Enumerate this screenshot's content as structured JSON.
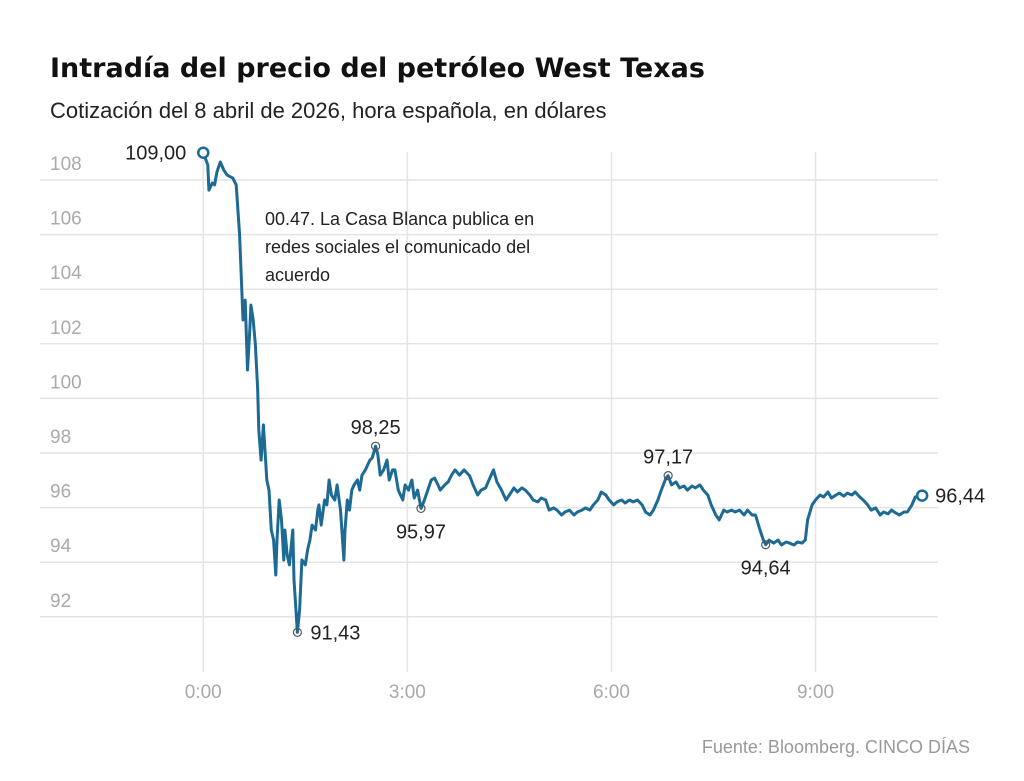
{
  "chart_data": {
    "type": "line",
    "title": "Intradía del precio del petróleo West Texas",
    "subtitle": "Cotización del 8 abril de 2026, hora española, en dólares",
    "xlabel": "",
    "ylabel": "",
    "x_unit": "minutes since 0:00",
    "xlim": [
      -144,
      648
    ],
    "ylim": [
      91,
      109
    ],
    "grid": true,
    "y_ticks": [
      108,
      106,
      104,
      102,
      100,
      98,
      96,
      94,
      92
    ],
    "y_tick_labels": [
      "108",
      "106",
      "104",
      "102",
      "100",
      "98",
      "96",
      "94",
      "92"
    ],
    "x_ticks": [
      0,
      180,
      360,
      540
    ],
    "x_tick_labels": [
      "0:00",
      "3:00",
      "6:00",
      "9:00"
    ],
    "series": [
      {
        "name": "West Texas",
        "color": "#1d6a94",
        "x": [
          0,
          4,
          5,
          8,
          10,
          12,
          15,
          18,
          21,
          26,
          29,
          32,
          34,
          35,
          37,
          39,
          41,
          42,
          44,
          46,
          48,
          49,
          51,
          53,
          55,
          56,
          58,
          60,
          62,
          64,
          65,
          67,
          69,
          71,
          72,
          74,
          76,
          79,
          80,
          83,
          85,
          87,
          90,
          92,
          94,
          96,
          99,
          101,
          102,
          104,
          107,
          109,
          111,
          113,
          116,
          118,
          121,
          124,
          125,
          127,
          129,
          131,
          133,
          136,
          138,
          140,
          143,
          147,
          149,
          152,
          154,
          156,
          159,
          162,
          164,
          167,
          169,
          172,
          176,
          178,
          181,
          184,
          186,
          189,
          192,
          195,
          198,
          201,
          204,
          207,
          209,
          213,
          216,
          219,
          222,
          226,
          230,
          235,
          238,
          242,
          245,
          249,
          252,
          256,
          259,
          263,
          267,
          270,
          274,
          277,
          281,
          284,
          288,
          291,
          295,
          298,
          302,
          305,
          309,
          312,
          316,
          319,
          323,
          327,
          330,
          334,
          337,
          341,
          344,
          348,
          351,
          355,
          358,
          362,
          365,
          369,
          372,
          376,
          379,
          383,
          387,
          390,
          394,
          397,
          401,
          404,
          408,
          410,
          413,
          417,
          420,
          424,
          427,
          431,
          434,
          438,
          441,
          445,
          448,
          452,
          455,
          459,
          462,
          466,
          469,
          473,
          477,
          480,
          484,
          487,
          491,
          494,
          496,
          499,
          503,
          507,
          510,
          514,
          517,
          521,
          524,
          528,
          531,
          533,
          537,
          540,
          544,
          547,
          551,
          554,
          558,
          561,
          565,
          568,
          572,
          575,
          579,
          582,
          586,
          589,
          593,
          597,
          600,
          604,
          607,
          611,
          614,
          618,
          621,
          625,
          628,
          634
        ],
        "values": [
          109.0,
          108.55,
          107.63,
          107.89,
          107.82,
          108.29,
          108.66,
          108.37,
          108.18,
          108.07,
          107.82,
          105.99,
          103.97,
          102.87,
          103.6,
          101.04,
          102.51,
          103.42,
          102.87,
          101.96,
          100.31,
          98.84,
          97.74,
          99.03,
          97.74,
          97.01,
          96.64,
          95.18,
          94.81,
          93.53,
          94.81,
          96.28,
          95.55,
          94.08,
          95.18,
          94.26,
          93.9,
          95.18,
          93.35,
          91.43,
          92.25,
          94.08,
          93.9,
          94.45,
          94.81,
          95.36,
          95.18,
          95.91,
          96.1,
          95.36,
          96.28,
          96.1,
          97.01,
          96.46,
          96.28,
          96.83,
          95.91,
          94.08,
          95.18,
          96.28,
          95.91,
          96.64,
          96.83,
          97.01,
          96.64,
          97.19,
          97.38,
          97.74,
          97.82,
          98.25,
          97.93,
          97.19,
          97.38,
          97.74,
          97.01,
          97.38,
          97.38,
          96.64,
          96.28,
          96.83,
          96.64,
          97.01,
          96.35,
          96.64,
          95.97,
          96.28,
          96.64,
          97.01,
          97.08,
          96.83,
          96.64,
          96.83,
          96.94,
          97.19,
          97.38,
          97.19,
          97.38,
          97.16,
          96.83,
          96.46,
          96.64,
          96.72,
          97.01,
          97.38,
          96.94,
          96.64,
          96.28,
          96.46,
          96.72,
          96.57,
          96.72,
          96.64,
          96.46,
          96.28,
          96.21,
          96.35,
          96.28,
          95.91,
          95.99,
          95.91,
          95.73,
          95.84,
          95.91,
          95.73,
          95.84,
          95.91,
          95.99,
          95.91,
          96.1,
          96.28,
          96.57,
          96.46,
          96.28,
          96.1,
          96.21,
          96.28,
          96.17,
          96.28,
          96.21,
          96.28,
          96.1,
          95.84,
          95.73,
          95.91,
          96.28,
          96.64,
          97.08,
          97.17,
          96.83,
          96.94,
          96.72,
          96.79,
          96.64,
          96.79,
          96.72,
          96.83,
          96.64,
          96.46,
          96.1,
          95.73,
          95.55,
          95.91,
          95.84,
          95.91,
          95.84,
          95.91,
          95.73,
          95.91,
          95.73,
          95.73,
          95.18,
          94.81,
          94.64,
          94.81,
          94.7,
          94.81,
          94.63,
          94.74,
          94.7,
          94.63,
          94.74,
          94.7,
          94.81,
          95.55,
          96.1,
          96.28,
          96.46,
          96.39,
          96.57,
          96.35,
          96.46,
          96.53,
          96.42,
          96.53,
          96.46,
          96.57,
          96.39,
          96.28,
          96.1,
          95.91,
          95.99,
          95.73,
          95.84,
          95.77,
          95.91,
          95.8,
          95.73,
          95.84,
          95.84,
          96.1,
          96.39,
          96.44
        ]
      }
    ],
    "data_labels": [
      {
        "x": 0,
        "y": 109.0,
        "text": "109,00",
        "anchor": "end",
        "marker": "endpoint"
      },
      {
        "x": 83,
        "y": 91.43,
        "text": "91,43",
        "anchor": "start-right",
        "marker": "point"
      },
      {
        "x": 152,
        "y": 98.25,
        "text": "98,25",
        "anchor": "above",
        "marker": "point"
      },
      {
        "x": 192,
        "y": 95.97,
        "text": "95,97",
        "anchor": "below",
        "marker": "point"
      },
      {
        "x": 410,
        "y": 97.17,
        "text": "97,17",
        "anchor": "above",
        "marker": "point"
      },
      {
        "x": 496,
        "y": 94.64,
        "text": "94,64",
        "anchor": "below",
        "marker": "point"
      },
      {
        "x": 634,
        "y": 96.44,
        "text": "96,44",
        "anchor": "right",
        "marker": "endpoint"
      }
    ],
    "annotation": {
      "lines": [
        "00.47. La Casa Blanca publica en",
        "redes sociales el comunicado del",
        "acuerdo"
      ]
    },
    "source": "Fuente: Bloomberg. CINCO DÍAS"
  }
}
